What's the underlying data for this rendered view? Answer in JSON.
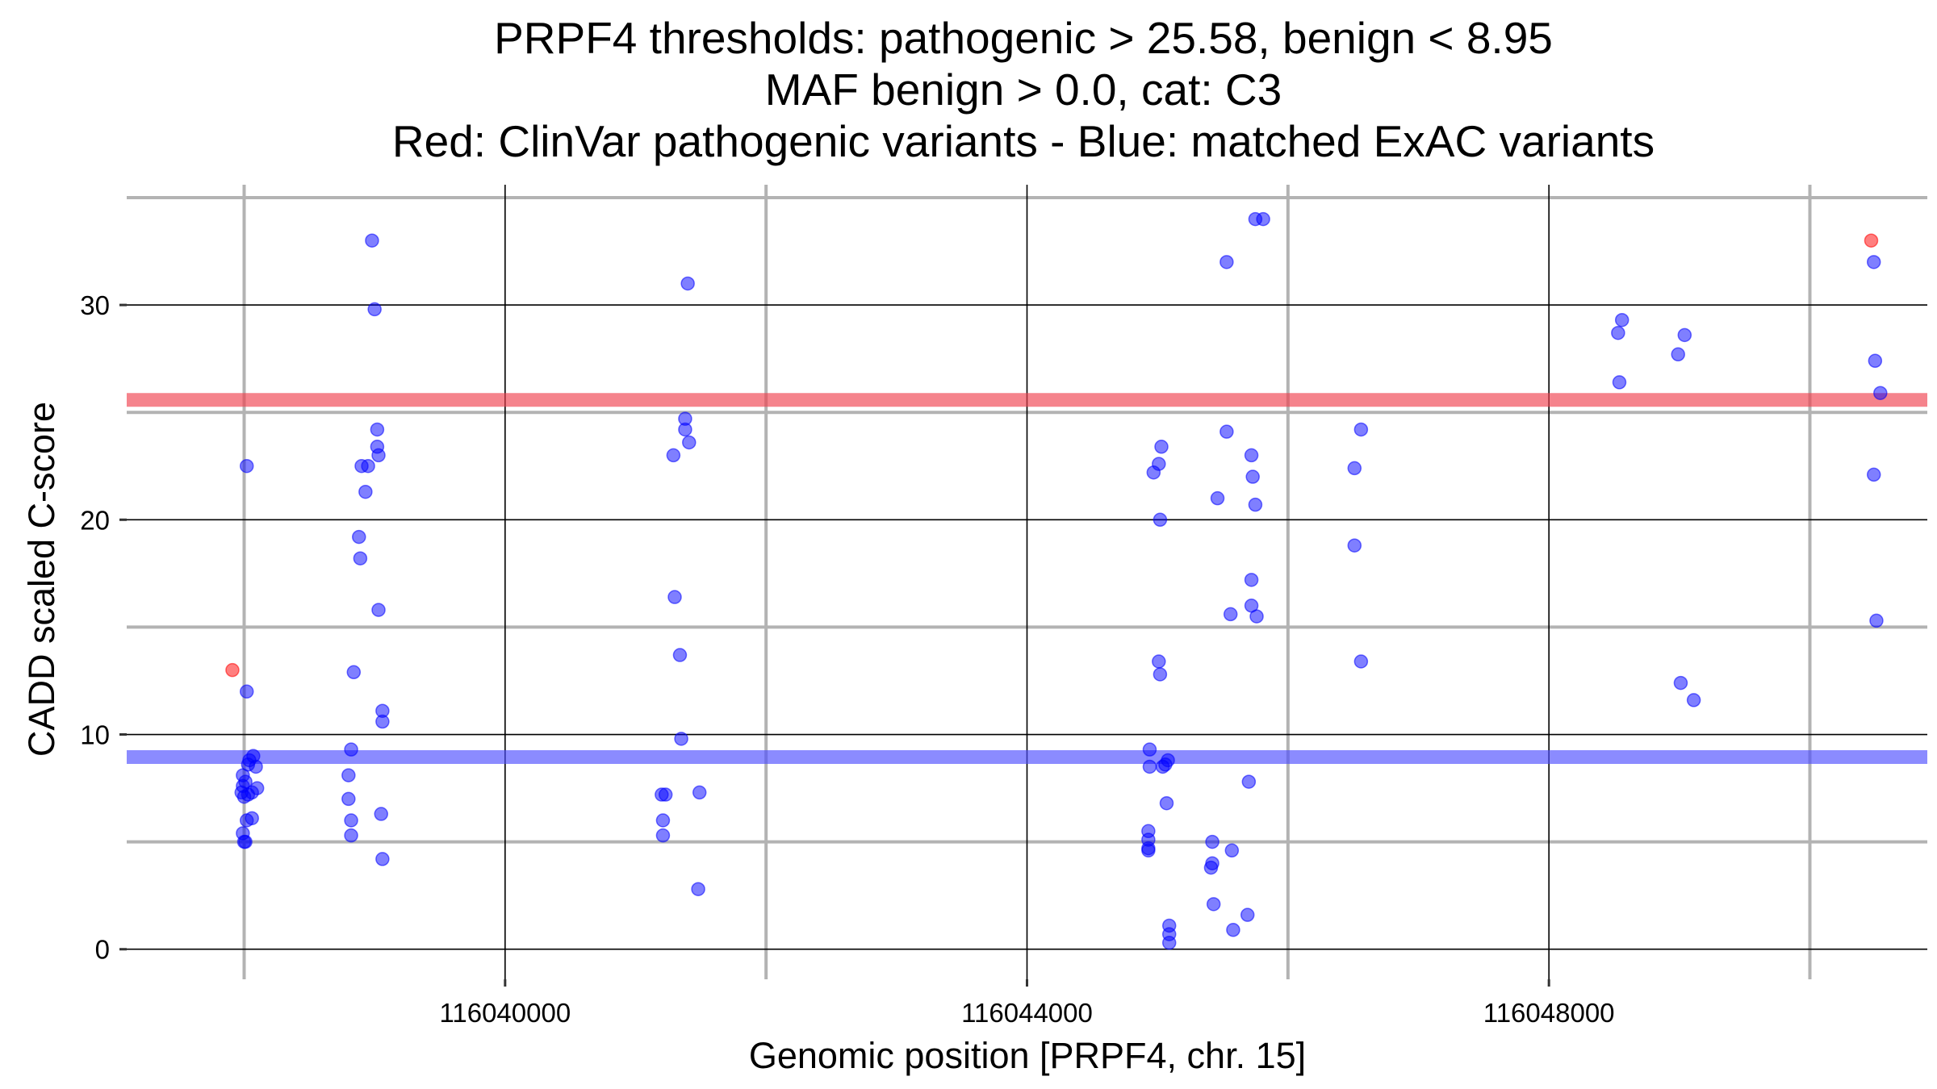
{
  "chart_data": {
    "type": "scatter",
    "title_lines": [
      "PRPF4 thresholds: pathogenic > 25.58, benign < 8.95",
      "MAF benign > 0.0, cat: C3",
      "Red: ClinVar pathogenic variants - Blue: matched ExAC variants"
    ],
    "xlabel": "Genomic position [PRPF4, chr. 15]",
    "ylabel": "CADD scaled C-score",
    "xlim": [
      116037100,
      116050900
    ],
    "ylim": [
      -1.4,
      35.6
    ],
    "x_ticks": [
      116040000,
      116044000,
      116048000
    ],
    "x_tick_labels": [
      "116040000",
      "116044000",
      "116048000"
    ],
    "x_minor_gridlines": [
      116038000,
      116042000,
      116046000,
      116050000
    ],
    "y_ticks": [
      0,
      10,
      20,
      30
    ],
    "y_tick_labels": [
      "0",
      "10",
      "20",
      "30"
    ],
    "y_minor_gridlines": [
      5,
      15,
      25,
      35
    ],
    "thresholds": [
      {
        "name": "pathogenic",
        "value": 25.58,
        "color": "#f0404e"
      },
      {
        "name": "benign",
        "value": 8.95,
        "color": "#4d4dff"
      }
    ],
    "series": [
      {
        "name": "ClinVar pathogenic variants",
        "color": "#ff0000",
        "points": [
          {
            "x": 116037910,
            "y": 13.0
          },
          {
            "x": 116050470,
            "y": 33.0
          }
        ]
      },
      {
        "name": "matched ExAC variants",
        "color": "#0000ff",
        "points": [
          {
            "x": 116038020,
            "y": 22.5
          },
          {
            "x": 116038020,
            "y": 12.0
          },
          {
            "x": 116038030,
            "y": 8.6
          },
          {
            "x": 116038070,
            "y": 9.0
          },
          {
            "x": 116038040,
            "y": 8.8
          },
          {
            "x": 116038090,
            "y": 8.5
          },
          {
            "x": 116037990,
            "y": 8.1
          },
          {
            "x": 116038010,
            "y": 7.8
          },
          {
            "x": 116037990,
            "y": 7.6
          },
          {
            "x": 116038100,
            "y": 7.5
          },
          {
            "x": 116038060,
            "y": 7.3
          },
          {
            "x": 116037980,
            "y": 7.3
          },
          {
            "x": 116038000,
            "y": 7.1
          },
          {
            "x": 116038030,
            "y": 7.2
          },
          {
            "x": 116038020,
            "y": 6.0
          },
          {
            "x": 116038060,
            "y": 6.1
          },
          {
            "x": 116037990,
            "y": 5.4
          },
          {
            "x": 116038010,
            "y": 5.0
          },
          {
            "x": 116038000,
            "y": 5.0
          },
          {
            "x": 116038980,
            "y": 33.0
          },
          {
            "x": 116039000,
            "y": 29.8
          },
          {
            "x": 116039020,
            "y": 24.2
          },
          {
            "x": 116039020,
            "y": 23.4
          },
          {
            "x": 116039030,
            "y": 23.0
          },
          {
            "x": 116038950,
            "y": 22.5
          },
          {
            "x": 116038900,
            "y": 22.5
          },
          {
            "x": 116038930,
            "y": 21.3
          },
          {
            "x": 116038880,
            "y": 19.2
          },
          {
            "x": 116038890,
            "y": 18.2
          },
          {
            "x": 116039030,
            "y": 15.8
          },
          {
            "x": 116038840,
            "y": 12.9
          },
          {
            "x": 116039060,
            "y": 11.1
          },
          {
            "x": 116039060,
            "y": 10.6
          },
          {
            "x": 116038820,
            "y": 9.3
          },
          {
            "x": 116038800,
            "y": 8.1
          },
          {
            "x": 116038800,
            "y": 7.0
          },
          {
            "x": 116039050,
            "y": 6.3
          },
          {
            "x": 116038820,
            "y": 6.0
          },
          {
            "x": 116038820,
            "y": 5.3
          },
          {
            "x": 116039060,
            "y": 4.2
          },
          {
            "x": 116041400,
            "y": 31.0
          },
          {
            "x": 116041380,
            "y": 24.7
          },
          {
            "x": 116041380,
            "y": 24.2
          },
          {
            "x": 116041410,
            "y": 23.6
          },
          {
            "x": 116041290,
            "y": 23.0
          },
          {
            "x": 116041300,
            "y": 16.4
          },
          {
            "x": 116041340,
            "y": 13.7
          },
          {
            "x": 116041350,
            "y": 9.8
          },
          {
            "x": 116041230,
            "y": 7.2
          },
          {
            "x": 116041200,
            "y": 7.2
          },
          {
            "x": 116041490,
            "y": 7.3
          },
          {
            "x": 116041210,
            "y": 6.0
          },
          {
            "x": 116041210,
            "y": 5.3
          },
          {
            "x": 116041480,
            "y": 2.8
          },
          {
            "x": 116045530,
            "y": 32.0
          },
          {
            "x": 116045750,
            "y": 34.0
          },
          {
            "x": 116045810,
            "y": 34.0
          },
          {
            "x": 116045030,
            "y": 23.4
          },
          {
            "x": 116045010,
            "y": 22.6
          },
          {
            "x": 116044970,
            "y": 22.2
          },
          {
            "x": 116045530,
            "y": 24.1
          },
          {
            "x": 116045720,
            "y": 23.0
          },
          {
            "x": 116045730,
            "y": 22.0
          },
          {
            "x": 116045460,
            "y": 21.0
          },
          {
            "x": 116045750,
            "y": 20.7
          },
          {
            "x": 116045020,
            "y": 20.0
          },
          {
            "x": 116045720,
            "y": 17.2
          },
          {
            "x": 116045720,
            "y": 16.0
          },
          {
            "x": 116045560,
            "y": 15.6
          },
          {
            "x": 116045760,
            "y": 15.5
          },
          {
            "x": 116045010,
            "y": 13.4
          },
          {
            "x": 116045020,
            "y": 12.8
          },
          {
            "x": 116044940,
            "y": 9.3
          },
          {
            "x": 116045080,
            "y": 8.8
          },
          {
            "x": 116045060,
            "y": 8.6
          },
          {
            "x": 116044940,
            "y": 8.5
          },
          {
            "x": 116045040,
            "y": 8.5
          },
          {
            "x": 116045700,
            "y": 7.8
          },
          {
            "x": 116045070,
            "y": 6.8
          },
          {
            "x": 116044930,
            "y": 5.5
          },
          {
            "x": 116044930,
            "y": 5.1
          },
          {
            "x": 116045420,
            "y": 5.0
          },
          {
            "x": 116044930,
            "y": 4.7
          },
          {
            "x": 116044930,
            "y": 4.6
          },
          {
            "x": 116045570,
            "y": 4.6
          },
          {
            "x": 116045420,
            "y": 4.0
          },
          {
            "x": 116045410,
            "y": 3.8
          },
          {
            "x": 116045430,
            "y": 2.1
          },
          {
            "x": 116045690,
            "y": 1.6
          },
          {
            "x": 116045090,
            "y": 1.1
          },
          {
            "x": 116045090,
            "y": 0.7
          },
          {
            "x": 116045580,
            "y": 0.9
          },
          {
            "x": 116045090,
            "y": 0.3
          },
          {
            "x": 116046560,
            "y": 24.2
          },
          {
            "x": 116046510,
            "y": 22.4
          },
          {
            "x": 116046510,
            "y": 18.8
          },
          {
            "x": 116046560,
            "y": 13.4
          },
          {
            "x": 116048560,
            "y": 29.3
          },
          {
            "x": 116048530,
            "y": 28.7
          },
          {
            "x": 116048540,
            "y": 26.4
          },
          {
            "x": 116049040,
            "y": 28.6
          },
          {
            "x": 116048990,
            "y": 27.7
          },
          {
            "x": 116049010,
            "y": 12.4
          },
          {
            "x": 116049110,
            "y": 11.6
          },
          {
            "x": 116050490,
            "y": 32.0
          },
          {
            "x": 116050500,
            "y": 27.4
          },
          {
            "x": 116050540,
            "y": 25.9
          },
          {
            "x": 116050490,
            "y": 22.1
          },
          {
            "x": 116050510,
            "y": 15.3
          }
        ]
      }
    ]
  }
}
